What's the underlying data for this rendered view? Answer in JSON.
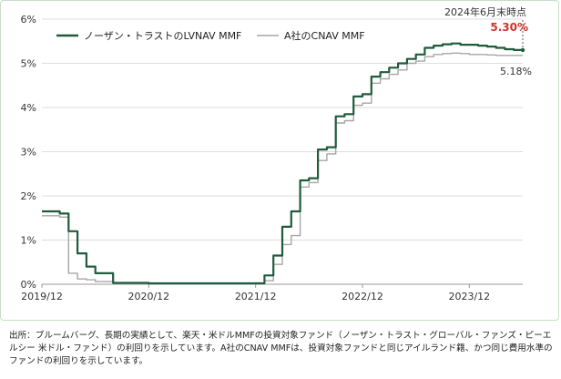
{
  "chart_data": {
    "type": "line",
    "title": "",
    "xlabel": "",
    "ylabel": "",
    "ylim": [
      0,
      6
    ],
    "yticks": [
      0,
      1,
      2,
      3,
      4,
      5,
      6
    ],
    "ytick_labels": [
      "0%",
      "1%",
      "2%",
      "3%",
      "4%",
      "5%",
      "6%"
    ],
    "xlim": [
      "2019-12",
      "2024-06"
    ],
    "xticks": [
      "2019-12",
      "2020-12",
      "2021-12",
      "2022-12",
      "2023-12"
    ],
    "xtick_labels": [
      "2019/12",
      "2020/12",
      "2021/12",
      "2022/12",
      "2023/12"
    ],
    "grid": "horizontal",
    "legend_position": "top-left",
    "series": [
      {
        "name": "ノーザン・トラストのLVNAV MMF",
        "color": "#1f5b3c",
        "x": [
          "2019-12",
          "2020-02",
          "2020-03",
          "2020-04",
          "2020-05",
          "2020-06",
          "2020-08",
          "2020-12",
          "2021-06",
          "2021-12",
          "2022-01",
          "2022-02",
          "2022-03",
          "2022-04",
          "2022-05",
          "2022-06",
          "2022-07",
          "2022-08",
          "2022-09",
          "2022-10",
          "2022-11",
          "2022-12",
          "2023-01",
          "2023-02",
          "2023-03",
          "2023-04",
          "2023-05",
          "2023-06",
          "2023-07",
          "2023-08",
          "2023-09",
          "2023-10",
          "2023-11",
          "2023-12",
          "2024-01",
          "2024-02",
          "2024-03",
          "2024-04",
          "2024-05",
          "2024-06"
        ],
        "values": [
          1.65,
          1.6,
          1.2,
          0.7,
          0.4,
          0.25,
          0.03,
          0.02,
          0.02,
          0.02,
          0.2,
          0.65,
          1.3,
          1.65,
          2.35,
          2.4,
          3.05,
          3.1,
          3.8,
          3.85,
          4.25,
          4.3,
          4.7,
          4.8,
          4.9,
          5.0,
          5.1,
          5.2,
          5.35,
          5.4,
          5.43,
          5.45,
          5.42,
          5.42,
          5.4,
          5.38,
          5.35,
          5.32,
          5.3,
          5.3
        ]
      },
      {
        "name": "A社のCNAV MMF",
        "color": "#a6a6a6",
        "x": [
          "2019-12",
          "2020-02",
          "2020-03",
          "2020-04",
          "2020-05",
          "2020-06",
          "2020-08",
          "2020-12",
          "2021-06",
          "2021-12",
          "2022-01",
          "2022-02",
          "2022-03",
          "2022-04",
          "2022-05",
          "2022-06",
          "2022-07",
          "2022-08",
          "2022-09",
          "2022-10",
          "2022-11",
          "2022-12",
          "2023-01",
          "2023-02",
          "2023-03",
          "2023-04",
          "2023-05",
          "2023-06",
          "2023-07",
          "2023-08",
          "2023-09",
          "2023-10",
          "2023-11",
          "2023-12",
          "2024-01",
          "2024-02",
          "2024-03",
          "2024-04",
          "2024-05",
          "2024-06"
        ],
        "values": [
          1.55,
          1.52,
          0.25,
          0.12,
          0.1,
          0.06,
          0.02,
          0.01,
          0.01,
          0.01,
          0.08,
          0.45,
          0.9,
          1.1,
          2.2,
          2.3,
          2.8,
          2.95,
          3.65,
          3.7,
          4.05,
          4.1,
          4.55,
          4.65,
          4.75,
          4.85,
          5.0,
          5.05,
          5.15,
          5.2,
          5.22,
          5.23,
          5.22,
          5.2,
          5.2,
          5.19,
          5.18,
          5.18,
          5.18,
          5.18
        ]
      }
    ],
    "annotations": {
      "date_label": "2024年6月末時点",
      "series1_end_label": "5.30%",
      "series1_end_color": "#d0342c",
      "series2_end_label": "5.18%"
    }
  },
  "caption": "出所：ブルームバーグ、長期の実績として、楽天・米ドルMMFの投資対象ファンド（ノーザン・トラスト・グローバル・ファンズ・ピーエルシー 米ドル・ファンド）の利回りを示しています。A社のCNAV MMFは、投資対象ファンドと同じアイルランド籍、かつ同じ費用水準のファンドの利回りを示しています。"
}
